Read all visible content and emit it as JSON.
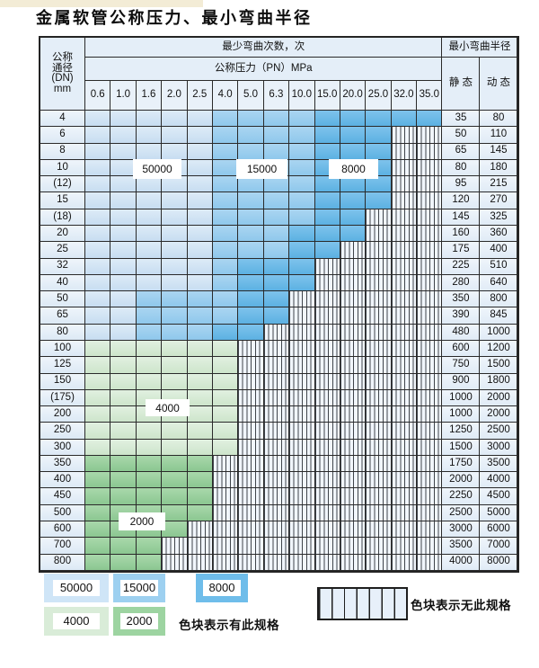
{
  "title": "金属软管公称压力、最小弯曲半径",
  "table": {
    "corner_lines": [
      "公称",
      "通径",
      "(DN)",
      "mm"
    ],
    "bend_cycles_header": "最少弯曲次数，次",
    "pressure_header": "公称压力（PN）MPa",
    "radius_header": "最小弯曲半径",
    "static_label": "静 态",
    "dynamic_label": "动 态",
    "pressure_columns": [
      "0.6",
      "1.0",
      "1.6",
      "2.0",
      "2.5",
      "4.0",
      "5.0",
      "6.3",
      "10.0",
      "15.0",
      "20.0",
      "25.0",
      "32.0",
      "35.0"
    ],
    "zone_key": {
      "L": "50000",
      "M": "15000",
      "D": "8000",
      "G": "4000",
      "E": "2000",
      "X": "no-spec"
    },
    "rows": [
      {
        "dn": "4",
        "cells": "LLLLLMMMMDDDDD",
        "static": "35",
        "dynamic": "80"
      },
      {
        "dn": "6",
        "cells": "LLLLLMMMMDDDXX",
        "static": "50",
        "dynamic": "110"
      },
      {
        "dn": "8",
        "cells": "LLLLLMMMMDDDXX",
        "static": "65",
        "dynamic": "145"
      },
      {
        "dn": "10",
        "cells": "LLLLLMMMMDDDXX",
        "static": "80",
        "dynamic": "180"
      },
      {
        "dn": "(12)",
        "cells": "LLLLLMMMMDDDXX",
        "static": "95",
        "dynamic": "215"
      },
      {
        "dn": "15",
        "cells": "LLLLLMMMMDDDXX",
        "static": "120",
        "dynamic": "270"
      },
      {
        "dn": "(18)",
        "cells": "LLLLLMMMMDDXXX",
        "static": "145",
        "dynamic": "325"
      },
      {
        "dn": "20",
        "cells": "LLLLLMMMDDDXXX",
        "static": "160",
        "dynamic": "360"
      },
      {
        "dn": "25",
        "cells": "LLLLLMMMDDXXXX",
        "static": "175",
        "dynamic": "400"
      },
      {
        "dn": "32",
        "cells": "LLLLLMDDDXXXXX",
        "static": "225",
        "dynamic": "510"
      },
      {
        "dn": "40",
        "cells": "LLLLLMDDDXXXXX",
        "static": "280",
        "dynamic": "640"
      },
      {
        "dn": "50",
        "cells": "LLMMMMDDXXXXXX",
        "static": "350",
        "dynamic": "800"
      },
      {
        "dn": "65",
        "cells": "LLMMMMDDXXXXXX",
        "static": "390",
        "dynamic": "845"
      },
      {
        "dn": "80",
        "cells": "LLMMMDDXXXXXXX",
        "static": "480",
        "dynamic": "1000"
      },
      {
        "dn": "100",
        "cells": "GGGGGGXXXXXXXX",
        "static": "600",
        "dynamic": "1200"
      },
      {
        "dn": "125",
        "cells": "GGGGGGXXXXXXXX",
        "static": "750",
        "dynamic": "1500"
      },
      {
        "dn": "150",
        "cells": "GGGGGGXXXXXXXX",
        "static": "900",
        "dynamic": "1800"
      },
      {
        "dn": "(175)",
        "cells": "GGGGGGXXXXXXXX",
        "static": "1000",
        "dynamic": "2000"
      },
      {
        "dn": "200",
        "cells": "GGGGGGXXXXXXXX",
        "static": "1000",
        "dynamic": "2000"
      },
      {
        "dn": "250",
        "cells": "GGGGGGXXXXXXXX",
        "static": "1250",
        "dynamic": "2500"
      },
      {
        "dn": "300",
        "cells": "GGGGGGXXXXXXXX",
        "static": "1500",
        "dynamic": "3000"
      },
      {
        "dn": "350",
        "cells": "EEEEEXXXXXXXXX",
        "static": "1750",
        "dynamic": "3500"
      },
      {
        "dn": "400",
        "cells": "EEEEEXXXXXXXXX",
        "static": "2000",
        "dynamic": "4000"
      },
      {
        "dn": "450",
        "cells": "EEEEEXXXXXXXXX",
        "static": "2250",
        "dynamic": "4500"
      },
      {
        "dn": "500",
        "cells": "EEEEEXXXXXXXXX",
        "static": "2500",
        "dynamic": "5000"
      },
      {
        "dn": "600",
        "cells": "EEEEXXXXXXXXXX",
        "static": "3000",
        "dynamic": "6000"
      },
      {
        "dn": "700",
        "cells": "EEEXXXXXXXXXXX",
        "static": "3500",
        "dynamic": "7000"
      },
      {
        "dn": "800",
        "cells": "EEEXXXXXXXXXXX",
        "static": "4000",
        "dynamic": "8000"
      }
    ]
  },
  "zone_labels": [
    "50000",
    "15000",
    "8000",
    "4000",
    "2000"
  ],
  "legend": {
    "swatches": [
      {
        "label": "50000",
        "color": "#cfe5f7"
      },
      {
        "label": "15000",
        "color": "#9dd0f0"
      },
      {
        "label": "8000",
        "color": "#6fbdea"
      },
      {
        "label": "4000",
        "color": "#d9ecd8"
      },
      {
        "label": "2000",
        "color": "#9dd4a1"
      }
    ],
    "has_spec_note": "色块表示有此规格",
    "no_spec_note": "色块表示无此规格"
  }
}
